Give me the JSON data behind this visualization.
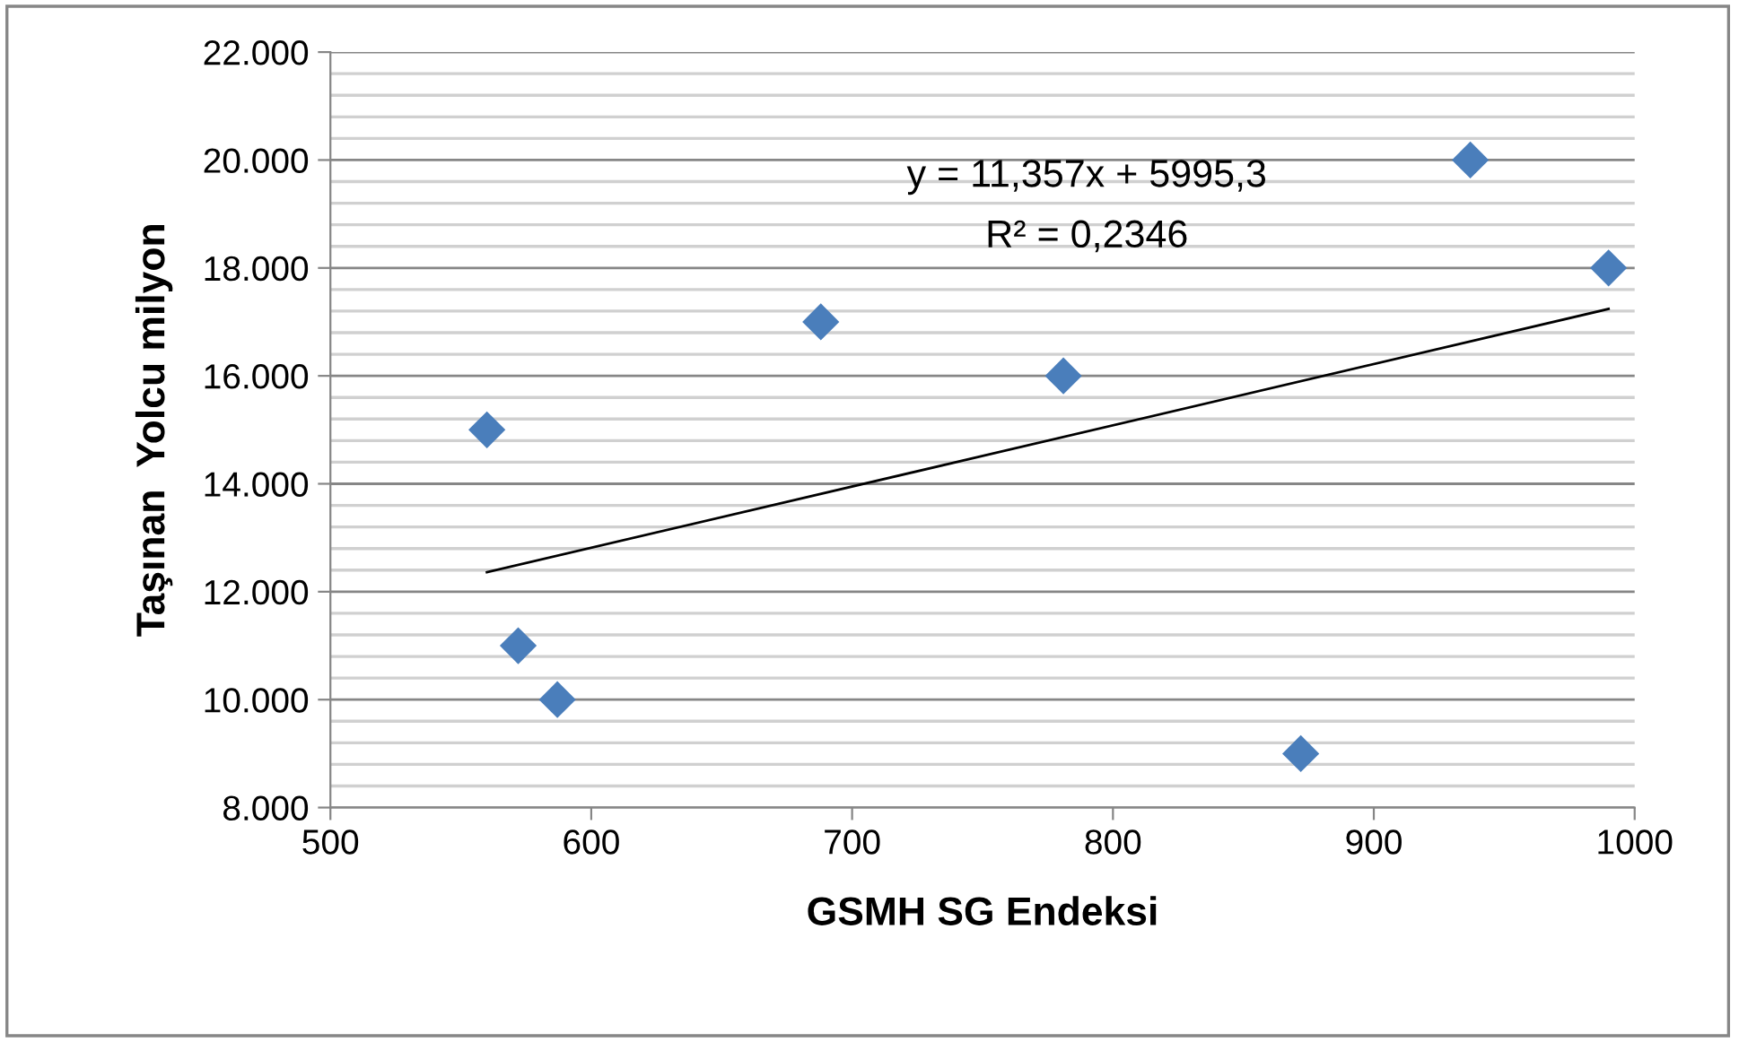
{
  "chart_data": {
    "type": "scatter",
    "xlabel": "GSMH SG Endeksi",
    "ylabel": "Taşınan  Yolcu milyon",
    "series": [
      {
        "color": "#4a7ebb",
        "marker": "diamond",
        "x": [
          560,
          572,
          587,
          688,
          781,
          872,
          937,
          990
        ],
        "values": [
          15000,
          11000,
          10000,
          17000,
          16000,
          9000,
          20000,
          18000
        ]
      },
      {
        "type": "line",
        "color": "#000000",
        "marker": "none",
        "line_style": "solid",
        "x": [
          560,
          990
        ],
        "values": [
          12360,
          17240
        ]
      }
    ],
    "xlim": [
      500,
      1000
    ],
    "xticks": [
      500,
      600,
      700,
      800,
      900,
      1000
    ],
    "ylim": [
      8000,
      22000
    ],
    "yticks": [
      {
        "value": 8000,
        "label": "8.000"
      },
      {
        "value": 8400,
        "label": null
      },
      {
        "value": 8800,
        "label": null
      },
      {
        "value": 9200,
        "label": null
      },
      {
        "value": 9600,
        "label": null
      },
      {
        "value": 10000,
        "label": "10.000"
      },
      {
        "value": 10400,
        "label": null
      },
      {
        "value": 10800,
        "label": null
      },
      {
        "value": 11200,
        "label": null
      },
      {
        "value": 11600,
        "label": null
      },
      {
        "value": 12000,
        "label": "12.000"
      },
      {
        "value": 12400,
        "label": null
      },
      {
        "value": 12800,
        "label": null
      },
      {
        "value": 13200,
        "label": null
      },
      {
        "value": 13600,
        "label": null
      },
      {
        "value": 14000,
        "label": "14.000"
      },
      {
        "value": 14400,
        "label": null
      },
      {
        "value": 14800,
        "label": null
      },
      {
        "value": 15200,
        "label": null
      },
      {
        "value": 15600,
        "label": null
      },
      {
        "value": 16000,
        "label": "16.000"
      },
      {
        "value": 16400,
        "label": null
      },
      {
        "value": 16800,
        "label": null
      },
      {
        "value": 17200,
        "label": null
      },
      {
        "value": 17600,
        "label": null
      },
      {
        "value": 18000,
        "label": "18.000"
      },
      {
        "value": 18400,
        "label": null
      },
      {
        "value": 18800,
        "label": null
      },
      {
        "value": 19200,
        "label": null
      },
      {
        "value": 19600,
        "label": null
      },
      {
        "value": 20000,
        "label": "20.000"
      },
      {
        "value": 20400,
        "label": null
      },
      {
        "value": 20800,
        "label": null
      },
      {
        "value": 21200,
        "label": null
      },
      {
        "value": 21600,
        "label": null
      },
      {
        "value": 22000,
        "label": "22.000"
      }
    ],
    "grid": "y",
    "legend": false,
    "annotations": [
      "y = 11,357x + 5995,3",
      "R² = 0,2346"
    ]
  }
}
